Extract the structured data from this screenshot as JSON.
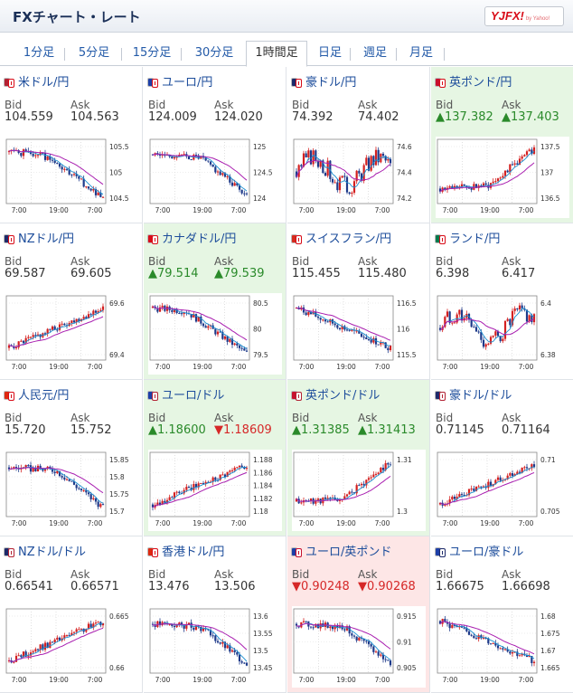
{
  "header": {
    "title": "FXチャート・レート",
    "logo": "YJFX!",
    "logo_sub": "by Yahoo!"
  },
  "tabs": [
    {
      "label": "1分足",
      "active": false
    },
    {
      "label": "5分足",
      "active": false
    },
    {
      "label": "15分足",
      "active": false
    },
    {
      "label": "30分足",
      "active": false
    },
    {
      "label": "1時間足",
      "active": true
    },
    {
      "label": "日足",
      "active": false
    },
    {
      "label": "週足",
      "active": false
    },
    {
      "label": "月足",
      "active": false
    }
  ],
  "labels": {
    "bid": "Bid",
    "ask": "Ask"
  },
  "colors": {
    "up_candle": "#d42020",
    "down_candle": "#1e3a8a",
    "ma_short": "#1a8fd0",
    "ma_long": "#a91fb0",
    "up_text": "#2a8a2a",
    "down_text": "#d62828",
    "up_bg": "#e6f6e3",
    "down_bg": "#fde6e6"
  },
  "pairs": [
    {
      "name": "米ドル/円",
      "flags": [
        "#b22234",
        "#d80c18"
      ],
      "bid": "104.559",
      "ask": "104.563",
      "state": "none",
      "bid_dir": "",
      "ask_dir": "",
      "y_ticks": [
        "105.5",
        "105",
        "104.5"
      ],
      "x_ticks": [
        "7:00",
        "19:00",
        "7:00"
      ],
      "trend": "down_steep",
      "seed": 1
    },
    {
      "name": "ユーロ/円",
      "flags": [
        "#1d3fa8",
        "#d80c18"
      ],
      "bid": "124.009",
      "ask": "124.020",
      "state": "none",
      "bid_dir": "",
      "ask_dir": "",
      "y_ticks": [
        "125",
        "124.5",
        "124"
      ],
      "x_ticks": [
        "7:00",
        "19:00",
        "7:00"
      ],
      "trend": "down_late",
      "seed": 2
    },
    {
      "name": "豪ドル/円",
      "flags": [
        "#1d2a6a",
        "#d80c18"
      ],
      "bid": "74.392",
      "ask": "74.402",
      "state": "none",
      "bid_dir": "",
      "ask_dir": "",
      "y_ticks": [
        "74.6",
        "74.4",
        "74.2"
      ],
      "x_ticks": [
        "7:00",
        "19:00",
        "7:00"
      ],
      "trend": "choppy",
      "seed": 3
    },
    {
      "name": "英ポンド/円",
      "flags": [
        "#c8102e",
        "#d80c18"
      ],
      "bid": "137.382",
      "ask": "137.403",
      "state": "up",
      "bid_dir": "▲",
      "ask_dir": "▲",
      "y_ticks": [
        "137.5",
        "137",
        "136.5"
      ],
      "x_ticks": [
        "7:00",
        "19:00",
        "7:00"
      ],
      "trend": "up_late",
      "seed": 4
    },
    {
      "name": "NZドル/円",
      "flags": [
        "#1d2a6a",
        "#d80c18"
      ],
      "bid": "69.587",
      "ask": "69.605",
      "state": "none",
      "bid_dir": "",
      "ask_dir": "",
      "y_ticks": [
        "69.6",
        "69.4"
      ],
      "x_ticks": [
        "7:00",
        "19:00",
        "7:00"
      ],
      "trend": "up_steady",
      "seed": 5
    },
    {
      "name": "カナダドル/円",
      "flags": [
        "#d80c18",
        "#d80c18"
      ],
      "bid": "79.514",
      "ask": "79.539",
      "state": "up",
      "bid_dir": "▲",
      "ask_dir": "▲",
      "y_ticks": [
        "80.5",
        "80",
        "79.5"
      ],
      "x_ticks": [
        "7:00",
        "19:00",
        "7:00"
      ],
      "trend": "down_steep",
      "seed": 6
    },
    {
      "name": "スイスフラン/円",
      "flags": [
        "#d52b1e",
        "#d80c18"
      ],
      "bid": "115.455",
      "ask": "115.480",
      "state": "none",
      "bid_dir": "",
      "ask_dir": "",
      "y_ticks": [
        "116.5",
        "116",
        "115.5"
      ],
      "x_ticks": [
        "7:00",
        "19:00",
        "7:00"
      ],
      "trend": "down_steady",
      "seed": 7
    },
    {
      "name": "ランド/円",
      "flags": [
        "#007a4d",
        "#d80c18"
      ],
      "bid": "6.398",
      "ask": "6.417",
      "state": "none",
      "bid_dir": "",
      "ask_dir": "",
      "y_ticks": [
        "6.4",
        "6.38"
      ],
      "x_ticks": [
        "7:00",
        "19:00",
        "7:00"
      ],
      "trend": "choppy",
      "seed": 8
    },
    {
      "name": "人民元/円",
      "flags": [
        "#de2910",
        "#d80c18"
      ],
      "bid": "15.720",
      "ask": "15.752",
      "state": "none",
      "bid_dir": "",
      "ask_dir": "",
      "y_ticks": [
        "15.85",
        "15.8",
        "15.75",
        "15.7"
      ],
      "x_ticks": [
        "7:00",
        "19:00",
        "7:00"
      ],
      "trend": "down_late",
      "seed": 9
    },
    {
      "name": "ユーロ/ドル",
      "flags": [
        "#1d3fa8",
        "#b22234"
      ],
      "bid": "1.18600",
      "ask": "1.18609",
      "state": "up",
      "bid_dir": "▲",
      "ask_dir": "▼",
      "y_ticks": [
        "1.188",
        "1.186",
        "1.184",
        "1.182",
        "1.18"
      ],
      "x_ticks": [
        "7:00",
        "19:00",
        "7:00"
      ],
      "trend": "up_steady",
      "seed": 10
    },
    {
      "name": "英ポンド/ドル",
      "flags": [
        "#c8102e",
        "#b22234"
      ],
      "bid": "1.31385",
      "ask": "1.31413",
      "state": "up",
      "bid_dir": "▲",
      "ask_dir": "▲",
      "y_ticks": [
        "1.31",
        "1.3"
      ],
      "x_ticks": [
        "7:00",
        "19:00",
        "7:00"
      ],
      "trend": "up_late",
      "seed": 11
    },
    {
      "name": "豪ドル/ドル",
      "flags": [
        "#1d2a6a",
        "#b22234"
      ],
      "bid": "0.71145",
      "ask": "0.71164",
      "state": "none",
      "bid_dir": "",
      "ask_dir": "",
      "y_ticks": [
        "0.71",
        "0.705"
      ],
      "x_ticks": [
        "7:00",
        "19:00",
        "7:00"
      ],
      "trend": "up_steady",
      "seed": 12
    },
    {
      "name": "NZドル/ドル",
      "flags": [
        "#1d2a6a",
        "#b22234"
      ],
      "bid": "0.66541",
      "ask": "0.66571",
      "state": "none",
      "bid_dir": "",
      "ask_dir": "",
      "y_ticks": [
        "0.665",
        "0.66"
      ],
      "x_ticks": [
        "7:00",
        "19:00",
        "7:00"
      ],
      "trend": "up_steady",
      "seed": 13
    },
    {
      "name": "香港ドル/円",
      "flags": [
        "#de2910",
        "#d80c18"
      ],
      "bid": "13.476",
      "ask": "13.506",
      "state": "none",
      "bid_dir": "",
      "ask_dir": "",
      "y_ticks": [
        "13.6",
        "13.55",
        "13.5",
        "13.45"
      ],
      "x_ticks": [
        "7:00",
        "19:00",
        "7:00"
      ],
      "trend": "down_late",
      "seed": 14
    },
    {
      "name": "ユーロ/英ポンド",
      "flags": [
        "#1d3fa8",
        "#c8102e"
      ],
      "bid": "0.90248",
      "ask": "0.90268",
      "state": "down",
      "bid_dir": "▼",
      "ask_dir": "▼",
      "y_ticks": [
        "0.915",
        "0.91",
        "0.905"
      ],
      "x_ticks": [
        "7:00",
        "19:00",
        "7:00"
      ],
      "trend": "down_late",
      "seed": 15
    },
    {
      "name": "ユーロ/豪ドル",
      "flags": [
        "#1d3fa8",
        "#1d2a6a"
      ],
      "bid": "1.66675",
      "ask": "1.66698",
      "state": "none",
      "bid_dir": "",
      "ask_dir": "",
      "y_ticks": [
        "1.68",
        "1.675",
        "1.67",
        "1.665"
      ],
      "x_ticks": [
        "7:00",
        "19:00",
        "7:00"
      ],
      "trend": "down_steady",
      "seed": 16
    }
  ]
}
